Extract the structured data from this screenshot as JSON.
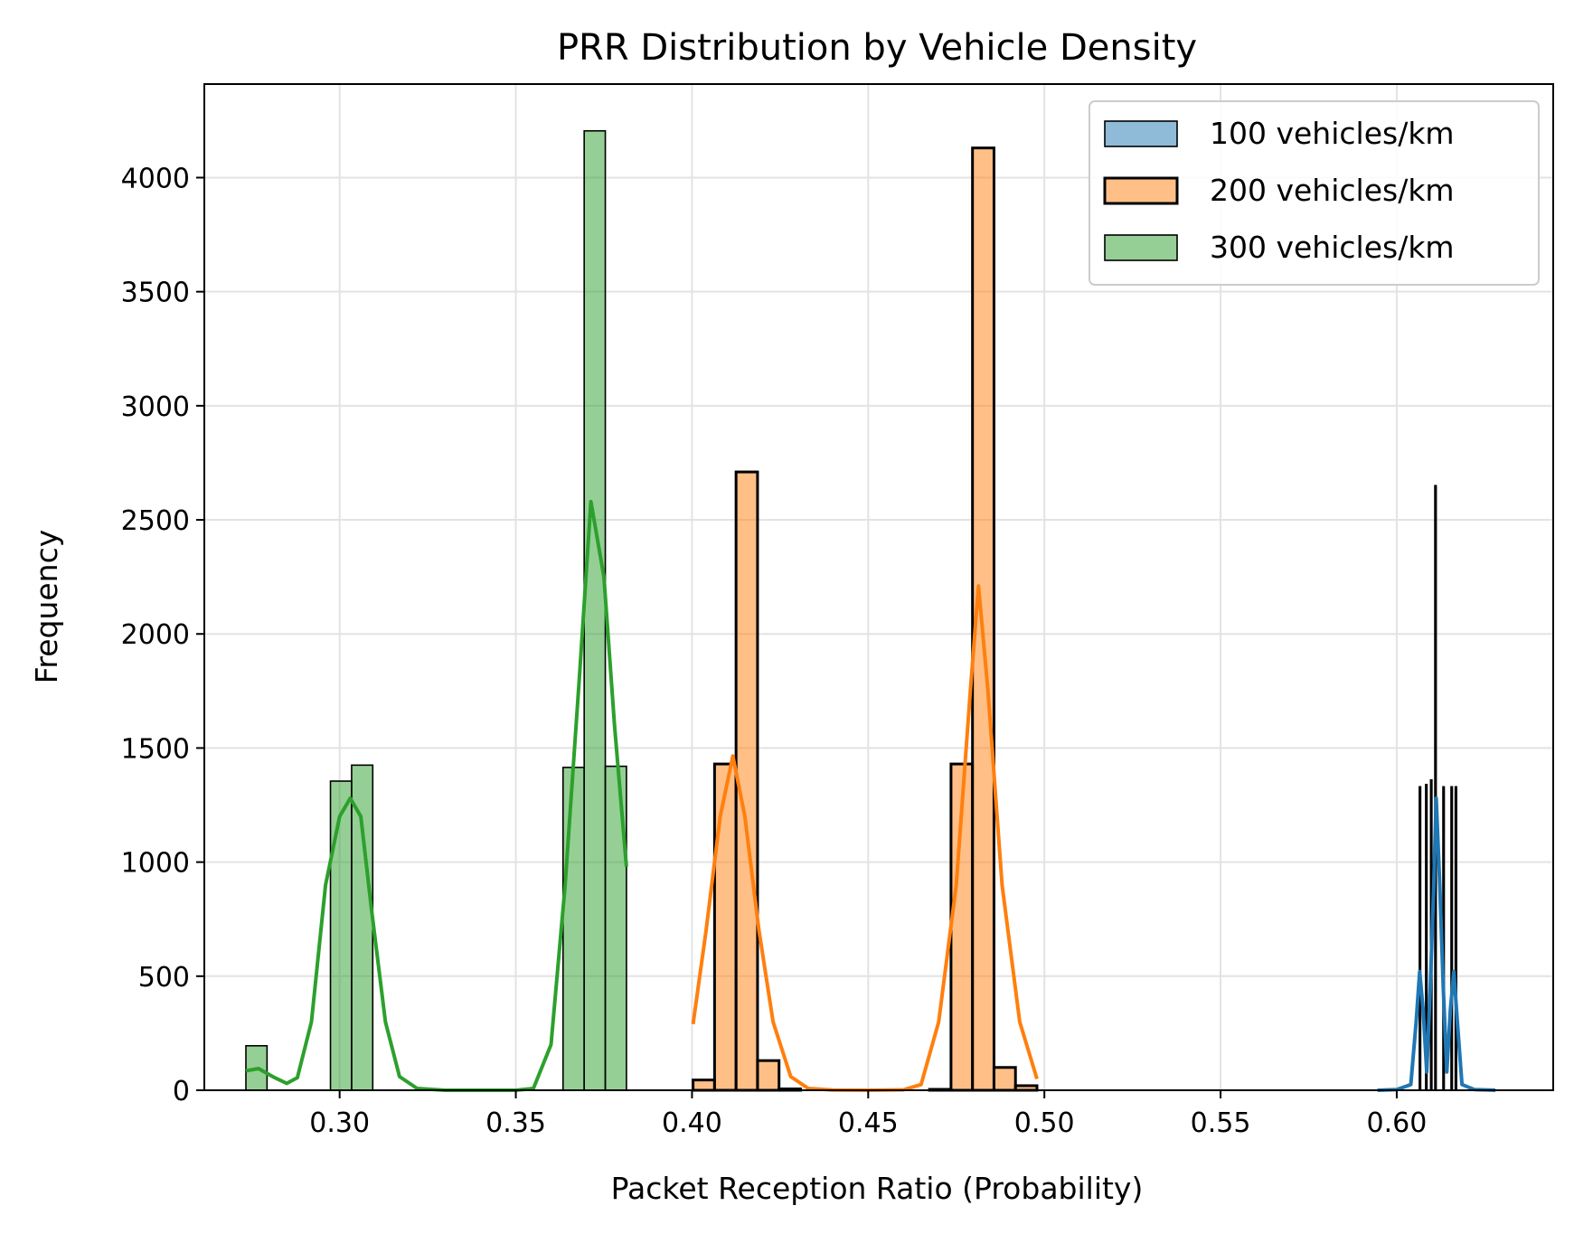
{
  "chart_data": {
    "type": "histogram",
    "title": "PRR Distribution by Vehicle Density",
    "xlabel": "Packet Reception Ratio (Probability)",
    "ylabel": "Frequency",
    "xlim": [
      0.2616,
      0.6444
    ],
    "ylim": [
      0,
      4410
    ],
    "xticks": [
      0.3,
      0.35,
      0.4,
      0.45,
      0.5,
      0.55,
      0.6
    ],
    "xtick_labels": [
      "0.30",
      "0.35",
      "0.40",
      "0.45",
      "0.50",
      "0.55",
      "0.60"
    ],
    "yticks": [
      0,
      500,
      1000,
      1500,
      2000,
      2500,
      3000,
      3500,
      4000
    ],
    "ytick_labels": [
      "0",
      "500",
      "1000",
      "1500",
      "2000",
      "2500",
      "3000",
      "3500",
      "4000"
    ],
    "grid": true,
    "legend_position": "top-right",
    "series": [
      {
        "name": "100 vehicles/km",
        "color": "#1f77b4",
        "bins": [
          {
            "x0": 0.6064,
            "x1": 0.6067,
            "count": 1330
          },
          {
            "x0": 0.6082,
            "x1": 0.6085,
            "count": 1340
          },
          {
            "x0": 0.6096,
            "x1": 0.6099,
            "count": 1360
          },
          {
            "x0": 0.6108,
            "x1": 0.6112,
            "count": 2650
          },
          {
            "x0": 0.6131,
            "x1": 0.6134,
            "count": 1330
          },
          {
            "x0": 0.6154,
            "x1": 0.6157,
            "count": 1330
          },
          {
            "x0": 0.6166,
            "x1": 0.6169,
            "count": 1330
          }
        ],
        "kde": [
          [
            0.5945,
            0
          ],
          [
            0.6,
            3
          ],
          [
            0.604,
            25
          ],
          [
            0.6055,
            300
          ],
          [
            0.6065,
            520
          ],
          [
            0.6075,
            350
          ],
          [
            0.6085,
            80
          ],
          [
            0.6095,
            450
          ],
          [
            0.6105,
            900
          ],
          [
            0.6112,
            1280
          ],
          [
            0.6122,
            900
          ],
          [
            0.6132,
            450
          ],
          [
            0.6142,
            80
          ],
          [
            0.6152,
            350
          ],
          [
            0.6162,
            520
          ],
          [
            0.6172,
            300
          ],
          [
            0.6185,
            25
          ],
          [
            0.622,
            3
          ],
          [
            0.628,
            0
          ]
        ]
      },
      {
        "name": "200 vehicles/km",
        "color": "#ff7f0e",
        "bins": [
          {
            "x0": 0.4003,
            "x1": 0.4064,
            "count": 45
          },
          {
            "x0": 0.4064,
            "x1": 0.4125,
            "count": 1430
          },
          {
            "x0": 0.4125,
            "x1": 0.4186,
            "count": 2710
          },
          {
            "x0": 0.4186,
            "x1": 0.4247,
            "count": 130
          },
          {
            "x0": 0.4247,
            "x1": 0.4308,
            "count": 6
          },
          {
            "x0": 0.4308,
            "x1": 0.4369,
            "count": 0
          },
          {
            "x0": 0.4369,
            "x1": 0.443,
            "count": 0
          },
          {
            "x0": 0.443,
            "x1": 0.4491,
            "count": 0
          },
          {
            "x0": 0.4491,
            "x1": 0.4552,
            "count": 0
          },
          {
            "x0": 0.4552,
            "x1": 0.4613,
            "count": 0
          },
          {
            "x0": 0.4613,
            "x1": 0.4674,
            "count": 0
          },
          {
            "x0": 0.4674,
            "x1": 0.4735,
            "count": 4
          },
          {
            "x0": 0.4735,
            "x1": 0.4796,
            "count": 1430
          },
          {
            "x0": 0.4796,
            "x1": 0.4857,
            "count": 4130
          },
          {
            "x0": 0.4857,
            "x1": 0.4918,
            "count": 100
          },
          {
            "x0": 0.4918,
            "x1": 0.4979,
            "count": 20
          }
        ],
        "kde": [
          [
            0.4003,
            290
          ],
          [
            0.404,
            700
          ],
          [
            0.408,
            1200
          ],
          [
            0.4116,
            1465
          ],
          [
            0.415,
            1200
          ],
          [
            0.419,
            700
          ],
          [
            0.423,
            300
          ],
          [
            0.428,
            60
          ],
          [
            0.433,
            8
          ],
          [
            0.44,
            1
          ],
          [
            0.45,
            0
          ],
          [
            0.46,
            2
          ],
          [
            0.465,
            25
          ],
          [
            0.47,
            300
          ],
          [
            0.475,
            900
          ],
          [
            0.479,
            1750
          ],
          [
            0.4813,
            2210
          ],
          [
            0.484,
            1750
          ],
          [
            0.488,
            900
          ],
          [
            0.493,
            300
          ],
          [
            0.4979,
            50
          ]
        ]
      },
      {
        "name": "300 vehicles/km",
        "color": "#2ca02c",
        "bins": [
          {
            "x0": 0.2734,
            "x1": 0.2794,
            "count": 195
          },
          {
            "x0": 0.2974,
            "x1": 0.3034,
            "count": 1355
          },
          {
            "x0": 0.3034,
            "x1": 0.3094,
            "count": 1425
          },
          {
            "x0": 0.3634,
            "x1": 0.3694,
            "count": 1415
          },
          {
            "x0": 0.3694,
            "x1": 0.3754,
            "count": 4205
          },
          {
            "x0": 0.3754,
            "x1": 0.3814,
            "count": 1420
          }
        ],
        "kde": [
          [
            0.2734,
            85
          ],
          [
            0.277,
            95
          ],
          [
            0.281,
            60
          ],
          [
            0.285,
            30
          ],
          [
            0.288,
            55
          ],
          [
            0.292,
            300
          ],
          [
            0.296,
            900
          ],
          [
            0.3,
            1200
          ],
          [
            0.303,
            1280
          ],
          [
            0.306,
            1200
          ],
          [
            0.309,
            800
          ],
          [
            0.313,
            300
          ],
          [
            0.317,
            60
          ],
          [
            0.322,
            8
          ],
          [
            0.33,
            0
          ],
          [
            0.35,
            0
          ],
          [
            0.355,
            8
          ],
          [
            0.36,
            200
          ],
          [
            0.364,
            900
          ],
          [
            0.368,
            1800
          ],
          [
            0.3713,
            2580
          ],
          [
            0.375,
            2250
          ],
          [
            0.378,
            1600
          ],
          [
            0.3814,
            980
          ]
        ]
      }
    ]
  }
}
